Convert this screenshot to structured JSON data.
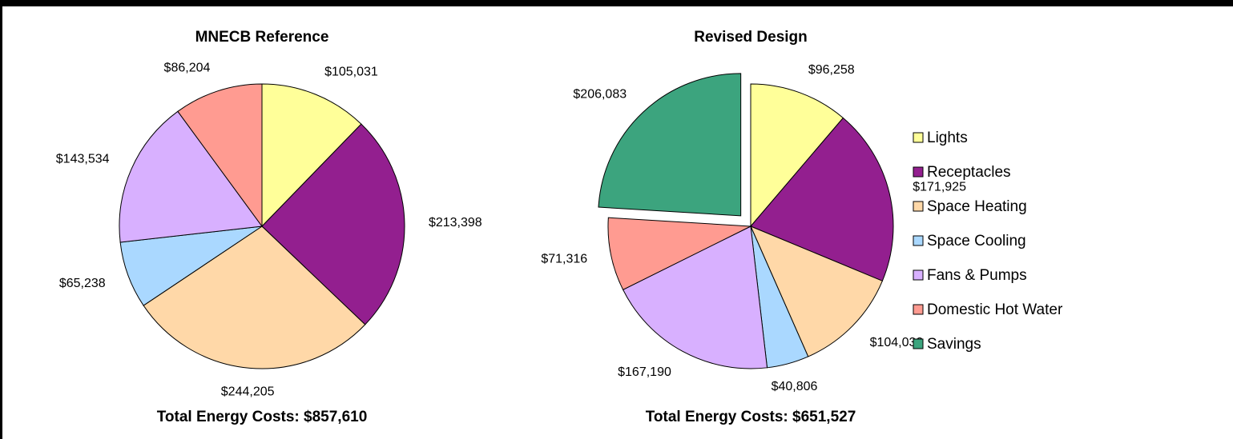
{
  "chart_data": [
    {
      "type": "pie",
      "title": "MNECB Reference",
      "values": [
        105031,
        213398,
        244205,
        65238,
        143534,
        86204
      ],
      "value_labels": [
        "$105,031",
        "$213,398",
        "$244,205",
        "$65,238",
        "$143,534",
        "$86,204"
      ],
      "colors": [
        "#ffff99",
        "#931f8f",
        "#ffd8a8",
        "#aad8ff",
        "#d8b0ff",
        "#ff9b91"
      ],
      "footer": "Total Energy Costs:  $857,610"
    },
    {
      "type": "pie",
      "title": "Revised Design",
      "categories": [
        "Lights",
        "Receptacles",
        "Space Heating",
        "Space Cooling",
        "Fans & Pumps",
        "Domestic Hot Water",
        "Savings"
      ],
      "values": [
        96258,
        171925,
        104032,
        40806,
        167190,
        71316,
        206083
      ],
      "value_labels": [
        "$96,258",
        "$171,925",
        "$104,032",
        "$40,806",
        "$167,190",
        "$71,316",
        "$206,083"
      ],
      "colors": [
        "#ffff99",
        "#931f8f",
        "#ffd8a8",
        "#aad8ff",
        "#d8b0ff",
        "#ff9b91",
        "#3ca47e"
      ],
      "exploded": "Savings",
      "annotation": "Savings",
      "footer": "Total Energy Costs:  $651,527"
    }
  ]
}
